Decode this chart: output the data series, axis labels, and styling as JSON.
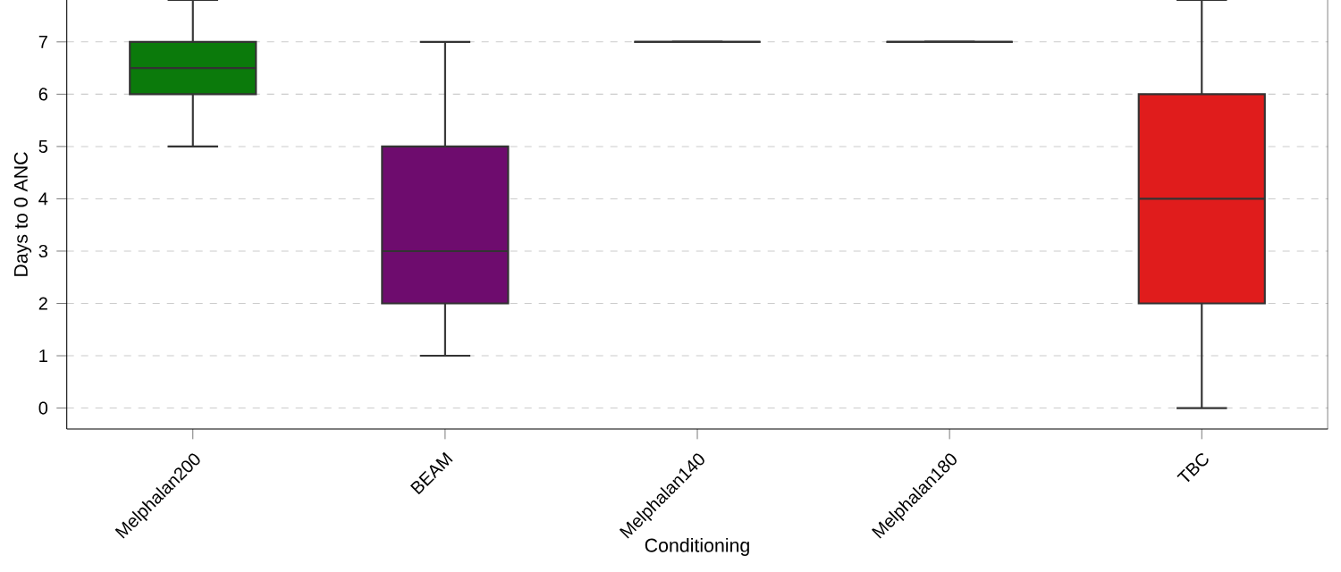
{
  "chart_data": {
    "type": "box",
    "xlabel": "Conditioning",
    "ylabel": "Days to 0 ANC",
    "categories": [
      "Melphalan200",
      "BEAM",
      "Melphalan140",
      "Melphalan180",
      "TBC"
    ],
    "colors": [
      "#0b7a0b",
      "#6e0c6e",
      "#333333",
      "#333333",
      "#e01c1c"
    ],
    "boxes": [
      {
        "low": 5,
        "q1": 6,
        "median": 6.5,
        "q3": 7,
        "high": 7.8
      },
      {
        "low": 1,
        "q1": 2,
        "median": 3,
        "q3": 5,
        "high": 7
      },
      {
        "low": 7,
        "q1": 7,
        "median": 7,
        "q3": 7,
        "high": 7
      },
      {
        "low": 7,
        "q1": 7,
        "median": 7,
        "q3": 7,
        "high": 7
      },
      {
        "low": 0,
        "q1": 2,
        "median": 4,
        "q3": 6,
        "high": 7.8
      }
    ],
    "ylim": [
      -0.4,
      7.8
    ],
    "yticks": [
      0,
      1,
      2,
      3,
      4,
      5,
      6,
      7
    ],
    "grid": "y"
  }
}
